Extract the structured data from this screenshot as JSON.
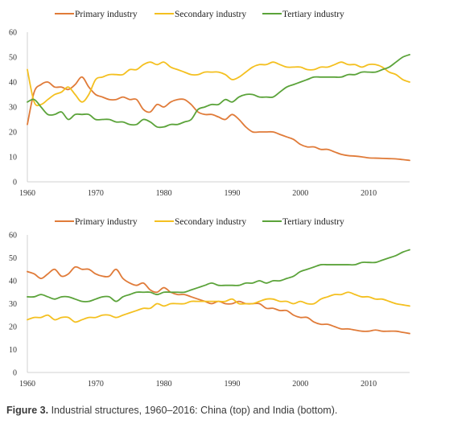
{
  "caption": {
    "label": "Figure 3.",
    "text": "Industrial structures, 1960–2016: China (top) and India (bottom)."
  },
  "chart_data": [
    {
      "type": "line",
      "xlim": [
        1960,
        2016
      ],
      "ylim": [
        0,
        60
      ],
      "xticks": [
        1960,
        1970,
        1980,
        1990,
        2000,
        2010
      ],
      "yticks": [
        0,
        10,
        20,
        30,
        40,
        50,
        60
      ],
      "grid": false,
      "legend_position": "top",
      "x": [
        1960,
        1961,
        1962,
        1963,
        1964,
        1965,
        1966,
        1967,
        1968,
        1969,
        1970,
        1971,
        1972,
        1973,
        1974,
        1975,
        1976,
        1977,
        1978,
        1979,
        1980,
        1981,
        1982,
        1983,
        1984,
        1985,
        1986,
        1987,
        1988,
        1989,
        1990,
        1991,
        1992,
        1993,
        1994,
        1995,
        1996,
        1997,
        1998,
        1999,
        2000,
        2001,
        2002,
        2003,
        2004,
        2005,
        2006,
        2007,
        2008,
        2009,
        2010,
        2011,
        2012,
        2013,
        2014,
        2015,
        2016
      ],
      "series": [
        {
          "name": "Primary industry",
          "color": "#e07b39",
          "values": [
            23,
            36,
            39,
            40,
            38,
            38,
            37,
            39,
            42,
            38,
            35,
            34,
            33,
            33,
            34,
            33,
            33,
            29,
            28,
            31,
            30,
            32,
            33,
            33,
            31,
            28,
            27,
            27,
            26,
            25,
            27,
            25,
            22,
            20,
            20,
            20,
            20,
            19,
            18,
            17,
            15,
            14,
            14,
            13,
            13,
            12,
            11,
            10.5,
            10.3,
            10,
            9.6,
            9.5,
            9.4,
            9.3,
            9.2,
            8.9,
            8.6
          ]
        },
        {
          "name": "Secondary industry",
          "color": "#f4c020",
          "values": [
            45,
            32,
            31,
            33,
            35,
            36,
            38,
            35,
            32,
            35,
            41,
            42,
            43,
            43,
            43,
            45,
            45,
            47,
            48,
            47,
            48,
            46,
            45,
            44,
            43,
            43,
            44,
            44,
            44,
            43,
            41,
            42,
            44,
            46,
            47,
            47,
            48,
            47,
            46,
            46,
            46,
            45,
            45,
            46,
            46,
            47,
            48,
            47,
            47,
            46,
            47,
            47,
            46,
            44,
            43,
            41,
            40
          ]
        },
        {
          "name": "Tertiary industry",
          "color": "#5ba33a",
          "values": [
            32,
            33,
            30,
            27,
            27,
            28,
            25,
            27,
            27,
            27,
            25,
            25,
            25,
            24,
            24,
            23,
            23,
            25,
            24,
            22,
            22,
            23,
            23,
            24,
            25,
            29,
            30,
            31,
            31,
            33,
            32,
            34,
            35,
            35,
            34,
            34,
            34,
            36,
            38,
            39,
            40,
            41,
            42,
            42,
            42,
            42,
            42,
            43,
            43,
            44,
            44,
            44,
            45,
            46,
            48,
            50,
            51
          ]
        }
      ]
    },
    {
      "type": "line",
      "xlim": [
        1960,
        2016
      ],
      "ylim": [
        0,
        60
      ],
      "xticks": [
        1960,
        1970,
        1980,
        1990,
        2000,
        2010
      ],
      "yticks": [
        0,
        10,
        20,
        30,
        40,
        50,
        60
      ],
      "grid": false,
      "legend_position": "top",
      "x": [
        1960,
        1961,
        1962,
        1963,
        1964,
        1965,
        1966,
        1967,
        1968,
        1969,
        1970,
        1971,
        1972,
        1973,
        1974,
        1975,
        1976,
        1977,
        1978,
        1979,
        1980,
        1981,
        1982,
        1983,
        1984,
        1985,
        1986,
        1987,
        1988,
        1989,
        1990,
        1991,
        1992,
        1993,
        1994,
        1995,
        1996,
        1997,
        1998,
        1999,
        2000,
        2001,
        2002,
        2003,
        2004,
        2005,
        2006,
        2007,
        2008,
        2009,
        2010,
        2011,
        2012,
        2013,
        2014,
        2015,
        2016
      ],
      "series": [
        {
          "name": "Primary industry",
          "color": "#e07b39",
          "values": [
            44,
            43,
            41,
            43,
            45,
            42,
            43,
            46,
            45,
            45,
            43,
            42,
            42,
            45,
            41,
            39,
            38,
            39,
            36,
            35,
            37,
            35,
            34,
            34,
            33,
            32,
            31,
            30,
            31,
            30,
            30,
            31,
            30,
            30,
            30,
            28,
            28,
            27,
            27,
            25,
            24,
            24,
            22,
            21,
            21,
            20,
            19,
            19,
            18.5,
            18,
            18,
            18.5,
            18,
            18,
            18,
            17.5,
            17
          ]
        },
        {
          "name": "Secondary industry",
          "color": "#f4c020",
          "values": [
            23,
            24,
            24,
            25,
            23,
            24,
            24,
            22,
            23,
            24,
            24,
            25,
            25,
            24,
            25,
            26,
            27,
            28,
            28,
            30,
            29,
            30,
            30,
            30,
            31,
            31,
            31,
            31,
            31,
            31,
            32,
            30,
            30,
            30,
            31,
            32,
            32,
            31,
            31,
            30,
            31,
            30,
            30,
            32,
            33,
            34,
            34,
            35,
            34,
            33,
            33,
            32,
            32,
            31,
            30,
            29.5,
            29
          ]
        },
        {
          "name": "Tertiary industry",
          "color": "#5ba33a",
          "values": [
            33,
            33,
            34,
            33,
            32,
            33,
            33,
            32,
            31,
            31,
            32,
            33,
            33,
            31,
            33,
            34,
            35,
            35,
            35,
            34,
            35,
            35,
            35,
            35,
            36,
            37,
            38,
            39,
            38,
            38,
            38,
            38,
            39,
            39,
            40,
            39,
            40,
            40,
            41,
            42,
            44,
            45,
            46,
            47,
            47,
            47,
            47,
            47,
            47,
            48,
            48,
            48,
            49,
            50,
            51,
            52.5,
            53.5
          ]
        }
      ]
    }
  ]
}
